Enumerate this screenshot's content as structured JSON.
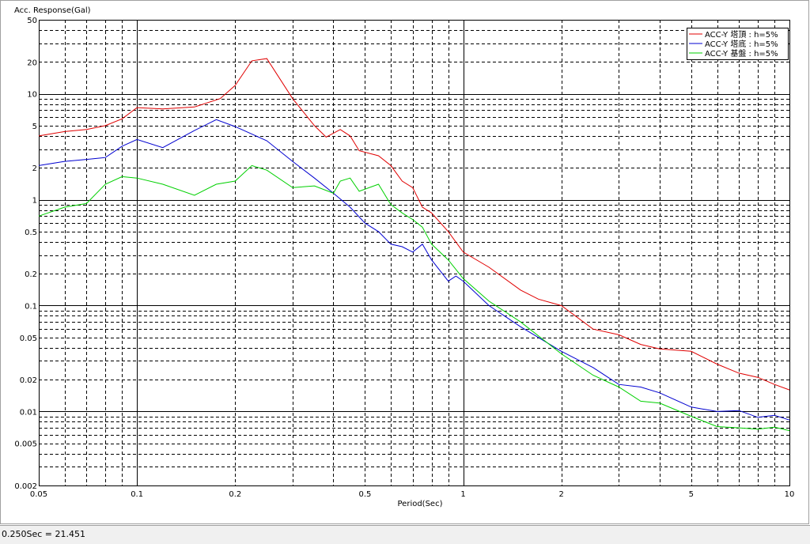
{
  "chart_data": {
    "type": "line",
    "ylabel": "Acc. Response(Gal)",
    "xlabel": "Period(Sec)",
    "xscale": "log",
    "yscale": "log",
    "xlim": [
      0.05,
      10
    ],
    "ylim": [
      0.002,
      50
    ],
    "xticks": [
      0.05,
      0.1,
      0.2,
      0.5,
      1,
      2,
      5,
      10
    ],
    "yticks": [
      0.002,
      0.005,
      0.01,
      0.02,
      0.05,
      0.1,
      0.2,
      0.5,
      1,
      2,
      5,
      10,
      20,
      50
    ],
    "xgrid": [
      0.05,
      0.06,
      0.07,
      0.08,
      0.09,
      0.1,
      0.2,
      0.3,
      0.4,
      0.5,
      0.6,
      0.7,
      0.8,
      0.9,
      1,
      2,
      3,
      4,
      5,
      6,
      7,
      8,
      9,
      10
    ],
    "ygrid": [
      0.002,
      0.003,
      0.004,
      0.005,
      0.006,
      0.007,
      0.008,
      0.009,
      0.01,
      0.02,
      0.03,
      0.04,
      0.05,
      0.06,
      0.07,
      0.08,
      0.09,
      0.1,
      0.2,
      0.3,
      0.4,
      0.5,
      0.6,
      0.7,
      0.8,
      0.9,
      1,
      2,
      3,
      4,
      5,
      6,
      7,
      8,
      9,
      10,
      20,
      30,
      40,
      50
    ],
    "legend": "upper right",
    "series": [
      {
        "name": "ACC-Y 塔頂 : h=5%",
        "color": "#e00000",
        "x": [
          0.05,
          0.06,
          0.07,
          0.08,
          0.09,
          0.1,
          0.12,
          0.15,
          0.18,
          0.2,
          0.225,
          0.25,
          0.3,
          0.35,
          0.38,
          0.42,
          0.45,
          0.48,
          0.55,
          0.6,
          0.65,
          0.7,
          0.75,
          0.8,
          0.9,
          1,
          1.2,
          1.5,
          1.7,
          2,
          2.5,
          3,
          3.5,
          4,
          5,
          6,
          7,
          8,
          9,
          10
        ],
        "values": [
          4.0,
          4.4,
          4.6,
          5.0,
          5.8,
          7.4,
          7.2,
          7.5,
          9,
          12,
          20.5,
          21.5,
          9,
          5,
          3.9,
          4.6,
          4,
          2.9,
          2.6,
          2.1,
          1.5,
          1.3,
          0.85,
          0.75,
          0.5,
          0.32,
          0.23,
          0.14,
          0.115,
          0.1,
          0.06,
          0.053,
          0.043,
          0.039,
          0.037,
          0.028,
          0.023,
          0.021,
          0.018,
          0.016
        ]
      },
      {
        "name": "ACC-Y 塔底 : h=5%",
        "color": "#0000d0",
        "x": [
          0.05,
          0.06,
          0.07,
          0.08,
          0.09,
          0.1,
          0.12,
          0.15,
          0.175,
          0.2,
          0.25,
          0.3,
          0.35,
          0.4,
          0.45,
          0.5,
          0.55,
          0.6,
          0.65,
          0.7,
          0.75,
          0.8,
          0.9,
          0.95,
          1,
          1.2,
          1.5,
          2,
          2.5,
          3,
          3.5,
          4,
          5,
          6,
          7,
          8,
          9,
          10
        ],
        "values": [
          2.1,
          2.3,
          2.4,
          2.5,
          3.2,
          3.7,
          3.1,
          4.5,
          5.7,
          4.9,
          3.6,
          2.3,
          1.6,
          1.15,
          0.85,
          0.6,
          0.5,
          0.38,
          0.36,
          0.32,
          0.38,
          0.27,
          0.17,
          0.19,
          0.17,
          0.1,
          0.063,
          0.037,
          0.026,
          0.018,
          0.017,
          0.015,
          0.011,
          0.01,
          0.0102,
          0.0088,
          0.0092,
          0.0083
        ]
      },
      {
        "name": "ACC-Y 基盤 : h=5%",
        "color": "#00d000",
        "x": [
          0.05,
          0.06,
          0.07,
          0.08,
          0.09,
          0.1,
          0.12,
          0.15,
          0.175,
          0.2,
          0.225,
          0.25,
          0.3,
          0.35,
          0.4,
          0.42,
          0.45,
          0.48,
          0.55,
          0.6,
          0.65,
          0.7,
          0.75,
          0.8,
          0.9,
          1,
          1.2,
          1.5,
          2,
          2.5,
          3,
          3.5,
          4,
          5,
          6,
          7,
          8,
          9,
          10
        ],
        "values": [
          0.7,
          0.85,
          0.92,
          1.4,
          1.65,
          1.6,
          1.4,
          1.1,
          1.4,
          1.5,
          2.1,
          1.9,
          1.3,
          1.35,
          1.15,
          1.5,
          1.6,
          1.2,
          1.4,
          0.9,
          0.75,
          0.65,
          0.55,
          0.38,
          0.27,
          0.18,
          0.11,
          0.07,
          0.035,
          0.022,
          0.017,
          0.0125,
          0.012,
          0.009,
          0.0072,
          0.007,
          0.0068,
          0.0071,
          0.0066
        ]
      }
    ]
  },
  "status_bar": "0.250Sec = 21.451"
}
